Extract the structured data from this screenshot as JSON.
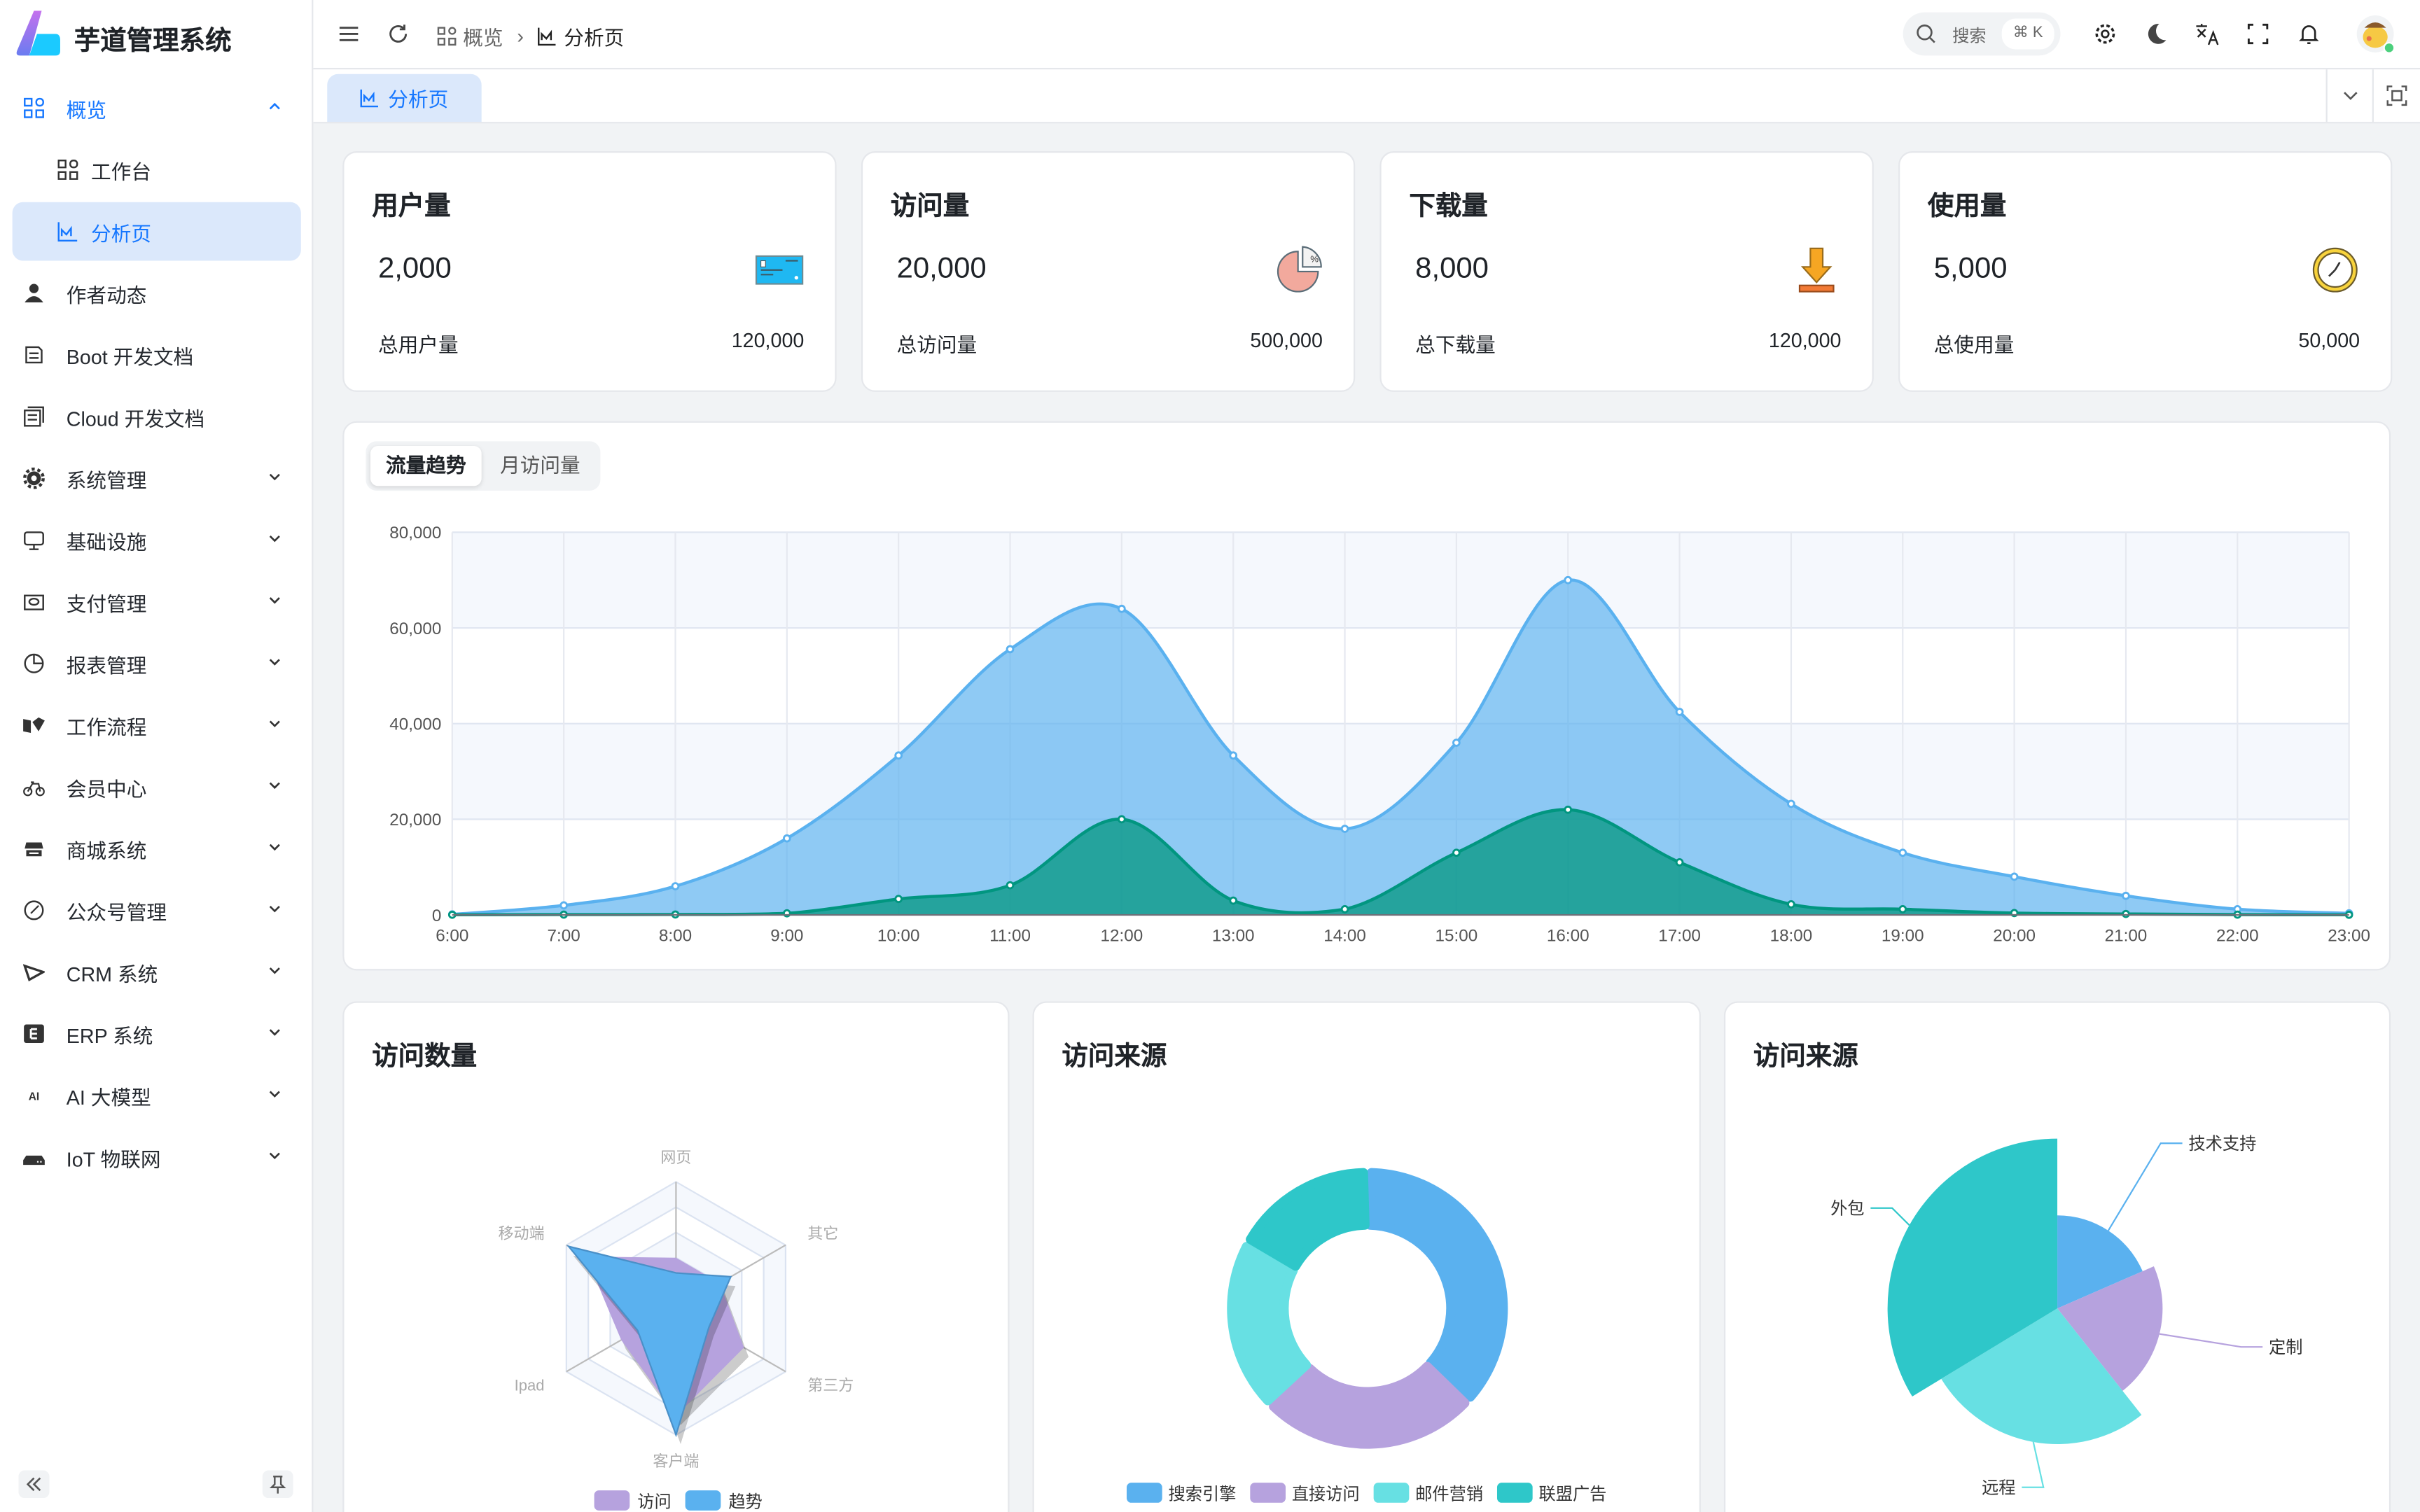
{
  "app": {
    "title": "芋道管理系统"
  },
  "sidebar": {
    "items": [
      {
        "label": "概览",
        "icon": "dashboard-icon",
        "state": "open"
      },
      {
        "label": "工作台",
        "icon": "dashboard-icon",
        "sub": true
      },
      {
        "label": "分析页",
        "icon": "area-chart-icon",
        "sub": true,
        "active": true
      },
      {
        "label": "作者动态",
        "icon": "user-icon"
      },
      {
        "label": "Boot 开发文档",
        "icon": "document-icon"
      },
      {
        "label": "Cloud 开发文档",
        "icon": "document-copy-icon"
      },
      {
        "label": "系统管理",
        "icon": "gear-icon",
        "expandable": true
      },
      {
        "label": "基础设施",
        "icon": "monitor-icon",
        "expandable": true
      },
      {
        "label": "支付管理",
        "icon": "wallet-icon",
        "expandable": true
      },
      {
        "label": "报表管理",
        "icon": "pie-chart-icon",
        "expandable": true
      },
      {
        "label": "工作流程",
        "icon": "workflow-icon",
        "expandable": true
      },
      {
        "label": "会员中心",
        "icon": "bicycle-icon",
        "expandable": true
      },
      {
        "label": "商城系统",
        "icon": "shop-icon",
        "expandable": true
      },
      {
        "label": "公众号管理",
        "icon": "compass-icon",
        "expandable": true
      },
      {
        "label": "CRM 系统",
        "icon": "crm-icon",
        "expandable": true
      },
      {
        "label": "ERP 系统",
        "icon": "erp-icon",
        "expandable": true
      },
      {
        "label": "AI 大模型",
        "icon": "ai-icon",
        "expandable": true
      },
      {
        "label": "IoT 物联网",
        "icon": "router-icon",
        "expandable": true
      }
    ]
  },
  "header": {
    "breadcrumb": [
      "概览",
      "分析页"
    ],
    "search_placeholder": "搜索",
    "search_shortcut": "⌘ K"
  },
  "tabs": [
    {
      "label": "分析页",
      "active": true
    }
  ],
  "stats": [
    {
      "title": "用户量",
      "value": "2,000",
      "total_label": "总用户量",
      "total": "120,000",
      "icon": "credit-card-icon"
    },
    {
      "title": "访问量",
      "value": "20,000",
      "total_label": "总访问量",
      "total": "500,000",
      "icon": "percent-pie-icon"
    },
    {
      "title": "下载量",
      "value": "8,000",
      "total_label": "总下载量",
      "total": "120,000",
      "icon": "download-icon"
    },
    {
      "title": "使用量",
      "value": "5,000",
      "total_label": "总使用量",
      "total": "50,000",
      "icon": "clock-icon"
    }
  ],
  "trend": {
    "tabs": [
      "流量趋势",
      "月访问量"
    ],
    "active_tab": 0
  },
  "bottom": {
    "titles": [
      "访问数量",
      "访问来源",
      "访问来源"
    ]
  },
  "colors": {
    "accent": "#1677ff",
    "blue": "#5ab1ef",
    "green": "#019680",
    "purple": "#b6a2de",
    "cyan": "#67e0e3",
    "teal": "#2ec7c9"
  },
  "chart_data": [
    {
      "type": "area",
      "x": [
        "6:00",
        "7:00",
        "8:00",
        "9:00",
        "10:00",
        "11:00",
        "12:00",
        "13:00",
        "14:00",
        "15:00",
        "16:00",
        "17:00",
        "18:00",
        "19:00",
        "20:00",
        "21:00",
        "22:00",
        "23:00"
      ],
      "yticks": [
        "0",
        "20,000",
        "40,000",
        "60,000",
        "80,000"
      ],
      "ylim": [
        0,
        80000
      ],
      "grid": true,
      "series": [
        {
          "values": [
            111,
            2000,
            6000,
            16000,
            33333,
            55555,
            64000,
            33333,
            18000,
            36000,
            70000,
            42444,
            23222,
            13000,
            8000,
            4000,
            1200,
            333
          ],
          "color": "#5ab1ef"
        },
        {
          "values": [
            33,
            66,
            88,
            333,
            3333,
            6200,
            20000,
            3000,
            1200,
            13000,
            22000,
            11000,
            2221,
            1201,
            390,
            198,
            60,
            30
          ],
          "color": "#019680"
        }
      ]
    },
    {
      "type": "radar",
      "indicators": [
        "网页",
        "移动端",
        "Ipad",
        "客户端",
        "第三方",
        "其它"
      ],
      "max": 100,
      "series": [
        {
          "name": "访问",
          "values": [
            40,
            82,
            50,
            85,
            62,
            40
          ],
          "color": "#b6a2de"
        },
        {
          "name": "趋势",
          "values": [
            28,
            98,
            35,
            100,
            30,
            50
          ],
          "color": "#5ab1ef"
        }
      ],
      "legend": "bottom"
    },
    {
      "type": "pie",
      "categories": [
        "搜索引擎",
        "直接访问",
        "邮件营销",
        "联盟广告"
      ],
      "values": [
        1048,
        735,
        580,
        484
      ],
      "colors": [
        "#5ab1ef",
        "#b6a2de",
        "#67e0e3",
        "#2ec7c9"
      ],
      "donut": true,
      "legend": "bottom"
    },
    {
      "type": "pie",
      "rose": true,
      "categories": [
        "技术支持",
        "定制",
        "远程",
        "外包"
      ],
      "values": [
        274,
        310,
        400,
        500
      ],
      "colors": [
        "#5ab1ef",
        "#b6a2de",
        "#67e0e3",
        "#2ec7c9"
      ]
    }
  ]
}
